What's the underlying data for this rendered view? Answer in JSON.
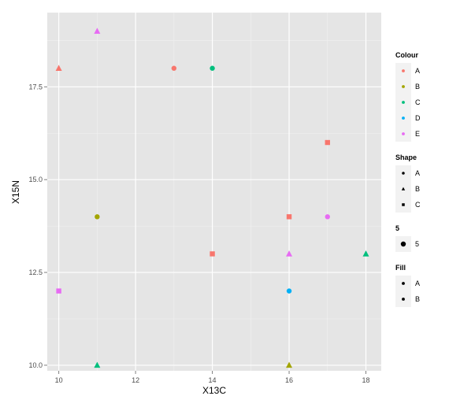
{
  "chart_data": {
    "type": "scatter",
    "title": "",
    "xlabel": "X13C",
    "ylabel": "X15N",
    "xlim": [
      9.7,
      18.4
    ],
    "ylim": [
      9.85,
      19.5
    ],
    "x_ticks": [
      10,
      12,
      14,
      16,
      18
    ],
    "x_tick_labels": [
      "10",
      "12",
      "14",
      "16",
      "18"
    ],
    "y_ticks": [
      10.0,
      12.5,
      15.0,
      17.5
    ],
    "y_tick_labels": [
      "10.0",
      "12.5",
      "15.0",
      "17.5"
    ],
    "grid": true,
    "colors": {
      "A": "#F8766D",
      "B": "#A3A500",
      "C": "#00BF7D",
      "D": "#00B0F6",
      "E": "#E76BF3"
    },
    "points": [
      {
        "x": 10,
        "y": 18.0,
        "colour": "A",
        "shape": "B"
      },
      {
        "x": 11,
        "y": 19.0,
        "colour": "E",
        "shape": "B"
      },
      {
        "x": 13,
        "y": 18.0,
        "colour": "A",
        "shape": "A"
      },
      {
        "x": 14,
        "y": 18.0,
        "colour": "C",
        "shape": "A"
      },
      {
        "x": 17,
        "y": 16.0,
        "colour": "A",
        "shape": "C"
      },
      {
        "x": 11,
        "y": 14.0,
        "colour": "B",
        "shape": "A"
      },
      {
        "x": 16,
        "y": 14.0,
        "colour": "A",
        "shape": "C"
      },
      {
        "x": 17,
        "y": 14.0,
        "colour": "E",
        "shape": "A"
      },
      {
        "x": 14,
        "y": 13.0,
        "colour": "A",
        "shape": "C"
      },
      {
        "x": 16,
        "y": 13.0,
        "colour": "E",
        "shape": "B"
      },
      {
        "x": 18,
        "y": 13.0,
        "colour": "C",
        "shape": "B"
      },
      {
        "x": 10,
        "y": 12.0,
        "colour": "E",
        "shape": "C"
      },
      {
        "x": 16,
        "y": 12.0,
        "colour": "D",
        "shape": "A"
      },
      {
        "x": 11,
        "y": 10.0,
        "colour": "C",
        "shape": "B"
      },
      {
        "x": 16,
        "y": 10.0,
        "colour": "B",
        "shape": "B"
      }
    ],
    "legends": [
      {
        "title": "Colour",
        "kind": "colour",
        "items": [
          "A",
          "B",
          "C",
          "D",
          "E"
        ]
      },
      {
        "title": "Shape",
        "kind": "shape",
        "items": [
          "A",
          "B",
          "C"
        ]
      },
      {
        "title": "5",
        "kind": "size",
        "items": [
          "5"
        ]
      },
      {
        "title": "Fill",
        "kind": "fill",
        "items": [
          "A",
          "B"
        ]
      }
    ]
  }
}
